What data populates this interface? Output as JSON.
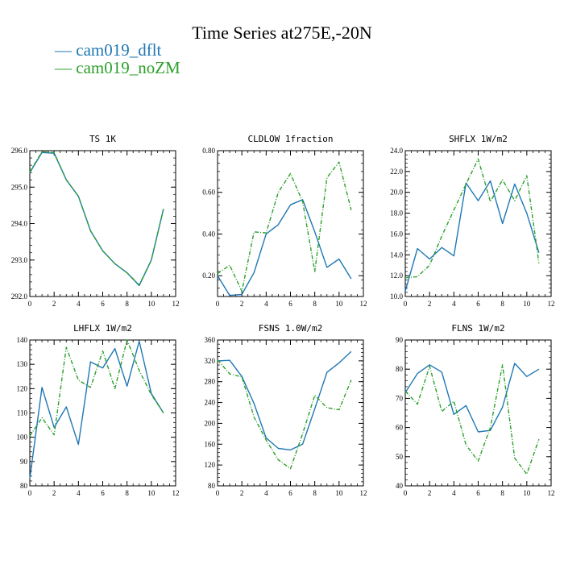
{
  "title": "Time Series at275E,-20N",
  "legend": [
    {
      "label": "cam019_dflt",
      "color": "#1f77b4",
      "style": "solid"
    },
    {
      "label": "cam019_noZM",
      "color": "#2ca02c",
      "style": "dashed"
    }
  ],
  "chart_data": [
    {
      "type": "line",
      "title": "TS  1K",
      "xlim": [
        0,
        12
      ],
      "xticks": [
        0,
        2,
        4,
        6,
        8,
        10,
        12
      ],
      "ylim": [
        292.0,
        296.0
      ],
      "yticks": [
        292.0,
        293.0,
        294.0,
        295.0,
        296.0
      ],
      "ytick_labels": [
        "292.0",
        "293.0",
        "294.0",
        "295.0",
        "296.0"
      ],
      "x": [
        0,
        1,
        2,
        3,
        4,
        5,
        6,
        7,
        8,
        9,
        10,
        11
      ],
      "series": [
        {
          "name": "cam019_dflt",
          "values": [
            295.4,
            295.95,
            295.93,
            295.2,
            294.75,
            293.8,
            293.25,
            292.9,
            292.65,
            292.3,
            293.0,
            294.4
          ]
        },
        {
          "name": "cam019_noZM",
          "values": [
            295.42,
            295.97,
            295.95,
            295.2,
            294.75,
            293.8,
            293.25,
            292.9,
            292.65,
            292.32,
            293.0,
            294.4
          ]
        }
      ]
    },
    {
      "type": "line",
      "title": "CLDLOW  1fraction",
      "xlim": [
        0,
        12
      ],
      "xticks": [
        0,
        2,
        4,
        6,
        8,
        10,
        12
      ],
      "ylim": [
        0.1,
        0.8
      ],
      "yticks": [
        0.2,
        0.4,
        0.6,
        0.8
      ],
      "ytick_labels": [
        "0.20",
        "0.40",
        "0.60",
        "0.80"
      ],
      "x": [
        0,
        1,
        2,
        3,
        4,
        5,
        6,
        7,
        8,
        9,
        10,
        11
      ],
      "series": [
        {
          "name": "cam019_dflt",
          "values": [
            0.2,
            0.105,
            0.11,
            0.215,
            0.4,
            0.445,
            0.54,
            0.565,
            0.41,
            0.24,
            0.28,
            0.185
          ]
        },
        {
          "name": "cam019_noZM",
          "values": [
            0.21,
            0.25,
            0.125,
            0.41,
            0.405,
            0.6,
            0.69,
            0.555,
            0.22,
            0.67,
            0.745,
            0.515
          ]
        }
      ]
    },
    {
      "type": "line",
      "title": "SHFLX  1W/m2",
      "xlim": [
        0,
        12
      ],
      "xticks": [
        0,
        2,
        4,
        6,
        8,
        10,
        12
      ],
      "ylim": [
        10.0,
        24.0
      ],
      "yticks": [
        10.0,
        12.0,
        14.0,
        16.0,
        18.0,
        20.0,
        22.0,
        24.0
      ],
      "ytick_labels": [
        "10.0",
        "12.0",
        "14.0",
        "16.0",
        "18.0",
        "20.0",
        "22.0",
        "24.0"
      ],
      "x": [
        0,
        1,
        2,
        3,
        4,
        5,
        6,
        7,
        8,
        9,
        10,
        11
      ],
      "series": [
        {
          "name": "cam019_dflt",
          "values": [
            10.5,
            14.6,
            13.6,
            14.7,
            13.9,
            20.9,
            19.2,
            21.1,
            17.0,
            20.8,
            18.0,
            14.2
          ]
        },
        {
          "name": "cam019_noZM",
          "values": [
            11.8,
            11.9,
            13.0,
            15.8,
            18.3,
            20.8,
            23.2,
            19.1,
            21.2,
            19.2,
            21.6,
            13.2
          ]
        }
      ]
    },
    {
      "type": "line",
      "title": "LHFLX  1W/m2",
      "xlim": [
        0,
        12
      ],
      "xticks": [
        0,
        2,
        4,
        6,
        8,
        10,
        12
      ],
      "ylim": [
        80,
        140
      ],
      "yticks": [
        80,
        90,
        100,
        110,
        120,
        130,
        140
      ],
      "ytick_labels": [
        "80",
        "90",
        "100",
        "110",
        "120",
        "130",
        "140"
      ],
      "x": [
        0,
        1,
        2,
        3,
        4,
        5,
        6,
        7,
        8,
        9,
        10,
        11
      ],
      "series": [
        {
          "name": "cam019_dflt",
          "values": [
            83,
            120.5,
            104,
            112.5,
            97,
            131,
            128.5,
            136.5,
            121,
            139.5,
            118,
            110
          ]
        },
        {
          "name": "cam019_noZM",
          "values": [
            100.5,
            108,
            101,
            137,
            123.5,
            120.5,
            135.5,
            120,
            140,
            127.5,
            117.5,
            110
          ]
        }
      ]
    },
    {
      "type": "line",
      "title": "FSNS  1.0W/m2",
      "xlim": [
        0,
        12
      ],
      "xticks": [
        0,
        2,
        4,
        6,
        8,
        10,
        12
      ],
      "ylim": [
        80,
        360
      ],
      "yticks": [
        80,
        120,
        160,
        200,
        240,
        280,
        320,
        360
      ],
      "ytick_labels": [
        "80",
        "120",
        "160",
        "200",
        "240",
        "280",
        "320",
        "360"
      ],
      "x": [
        0,
        1,
        2,
        3,
        4,
        5,
        6,
        7,
        8,
        9,
        10,
        11
      ],
      "series": [
        {
          "name": "cam019_dflt",
          "values": [
            320,
            321,
            290,
            238,
            172,
            152,
            149,
            160,
            228,
            298,
            316,
            338
          ]
        },
        {
          "name": "cam019_noZM",
          "values": [
            322,
            295,
            289,
            212,
            168,
            130,
            113,
            180,
            254,
            230,
            226,
            283
          ]
        }
      ]
    },
    {
      "type": "line",
      "title": "FLNS  1W/m2",
      "xlim": [
        0,
        12
      ],
      "xticks": [
        0,
        2,
        4,
        6,
        8,
        10,
        12
      ],
      "ylim": [
        40,
        90
      ],
      "yticks": [
        40,
        50,
        60,
        70,
        80,
        90
      ],
      "ytick_labels": [
        "40",
        "50",
        "60",
        "70",
        "80",
        "90"
      ],
      "x": [
        0,
        1,
        2,
        3,
        4,
        5,
        6,
        7,
        8,
        9,
        10,
        11
      ],
      "series": [
        {
          "name": "cam019_dflt",
          "values": [
            72,
            78.5,
            81.5,
            79,
            64.5,
            67.5,
            58.5,
            59,
            67,
            82,
            77.5,
            80
          ]
        },
        {
          "name": "cam019_noZM",
          "values": [
            72.5,
            68,
            81,
            65.5,
            69,
            54,
            48.5,
            60,
            81.5,
            49.5,
            44,
            56
          ]
        }
      ]
    }
  ]
}
